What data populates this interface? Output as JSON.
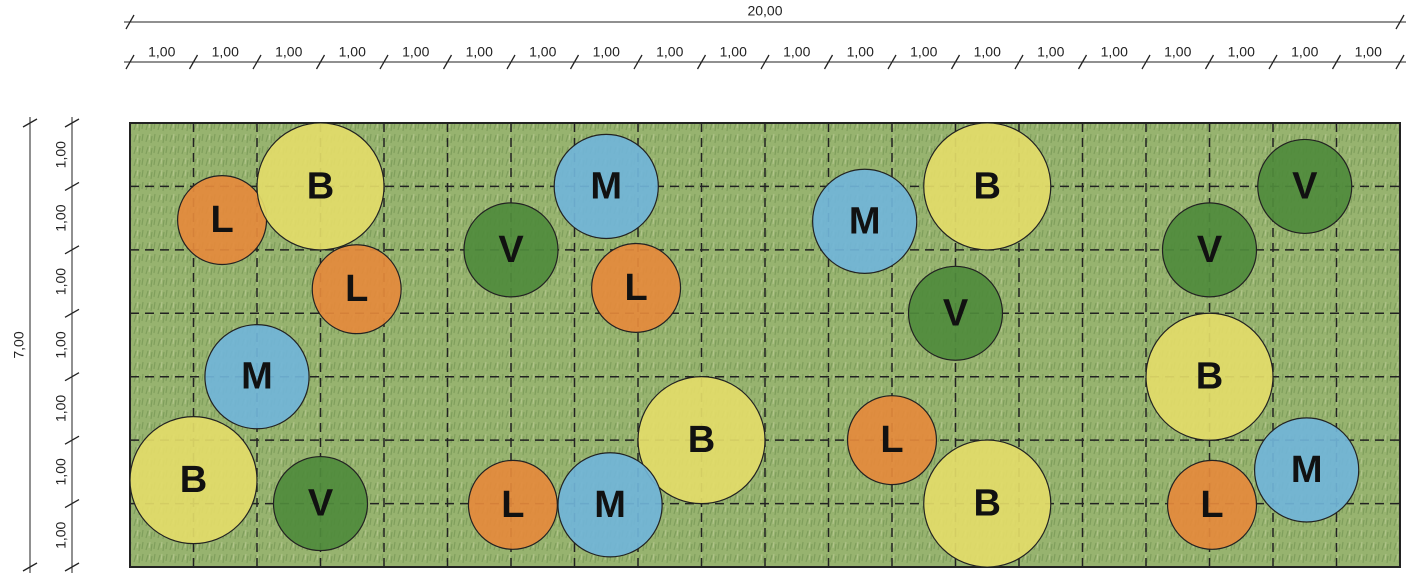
{
  "dimensions": {
    "top": {
      "total": "20,00",
      "segments": [
        "1,00",
        "1,00",
        "1,00",
        "1,00",
        "1,00",
        "1,00",
        "1,00",
        "1,00",
        "1,00",
        "1,00",
        "1,00",
        "1,00",
        "1,00",
        "1,00",
        "1,00",
        "1,00",
        "1,00",
        "1,00",
        "1,00",
        "1,00"
      ]
    },
    "left": {
      "total": "7,00",
      "segments": [
        "1,00",
        "1,00",
        "1,00",
        "1,00",
        "1,00",
        "1,00",
        "1,00"
      ]
    }
  },
  "nodes": [
    {
      "label": "L"
    },
    {
      "label": "B"
    },
    {
      "label": "L"
    },
    {
      "label": "M"
    },
    {
      "label": "B"
    },
    {
      "label": "V"
    },
    {
      "label": "V"
    },
    {
      "label": "M"
    },
    {
      "label": "L"
    },
    {
      "label": "B"
    },
    {
      "label": "L"
    },
    {
      "label": "M"
    },
    {
      "label": "M"
    },
    {
      "label": "B"
    },
    {
      "label": "V"
    },
    {
      "label": "L"
    },
    {
      "label": "B"
    },
    {
      "label": "V"
    },
    {
      "label": "V"
    },
    {
      "label": "B"
    },
    {
      "label": "M"
    },
    {
      "label": "L"
    }
  ]
}
